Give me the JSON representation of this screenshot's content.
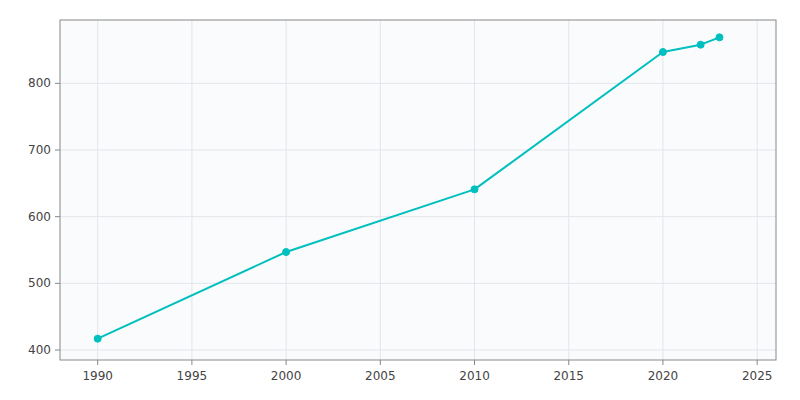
{
  "chart_data": {
    "type": "line",
    "x": [
      1990,
      2000,
      2010,
      2020,
      2022,
      2023
    ],
    "values": [
      417,
      547,
      641,
      847,
      858,
      869
    ],
    "color": "#00BFBF",
    "marker": "circle",
    "xlim": [
      1988,
      2026
    ],
    "ylim": [
      385,
      895
    ],
    "xticks": [
      1990,
      1995,
      2000,
      2005,
      2010,
      2015,
      2020,
      2025
    ],
    "yticks": [
      400,
      500,
      600,
      700,
      800
    ],
    "grid": true
  }
}
